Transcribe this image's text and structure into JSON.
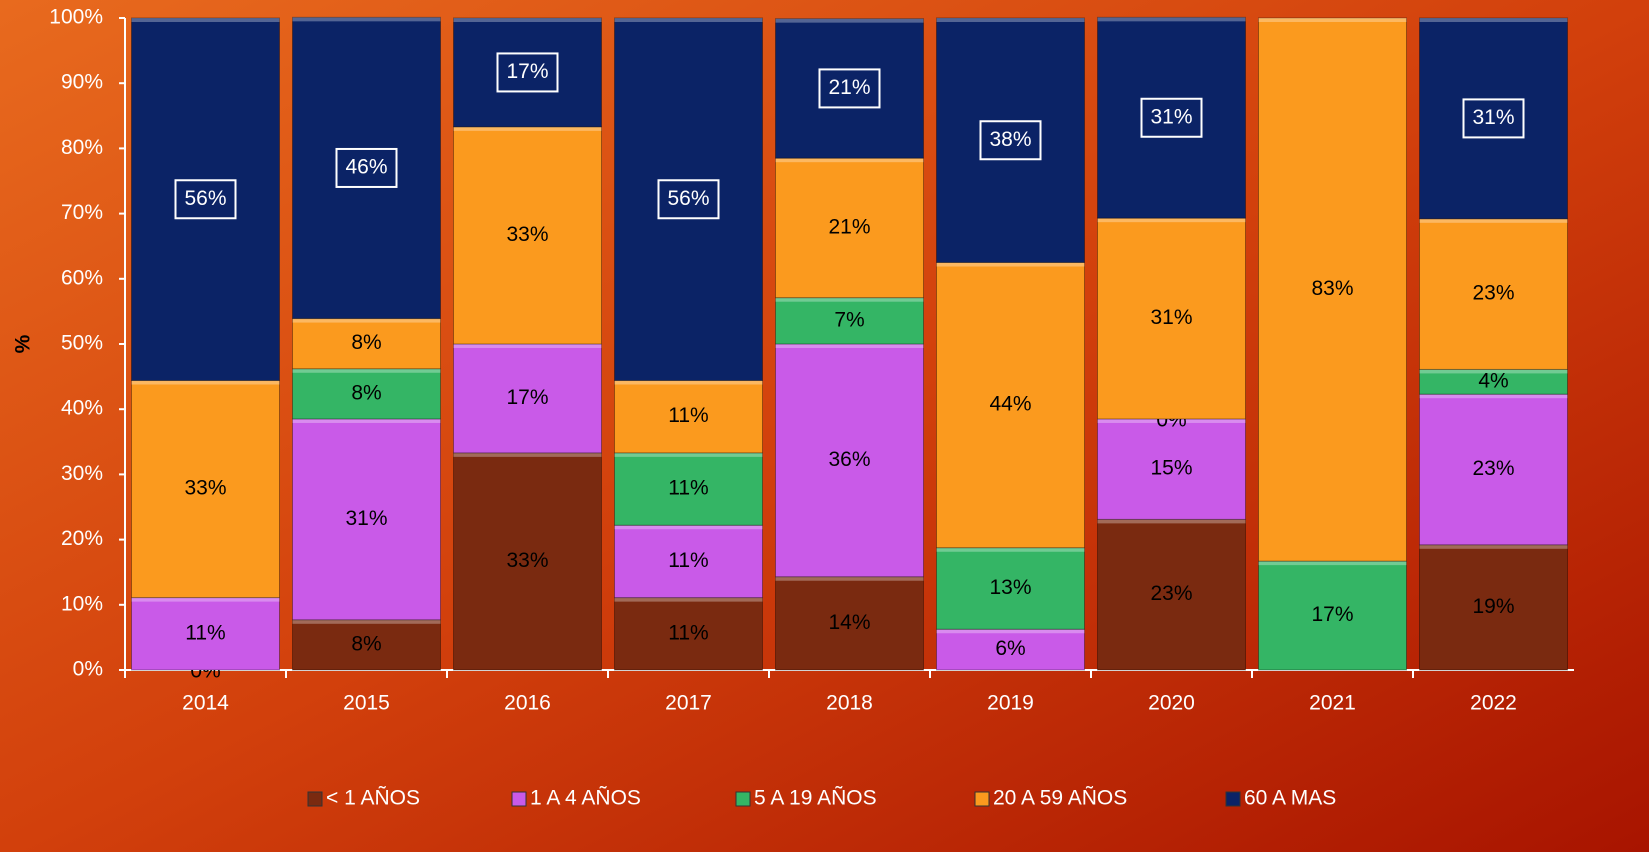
{
  "chart_data": {
    "type": "stacked_bar",
    "y_label": "%",
    "categories": [
      "2014",
      "2015",
      "2016",
      "2017",
      "2018",
      "2019",
      "2020",
      "2021",
      "2022"
    ],
    "ylim": [
      0,
      100
    ],
    "yticks": [
      {
        "value": 0,
        "label": "0%"
      },
      {
        "value": 10,
        "label": "10%"
      },
      {
        "value": 20,
        "label": "20%"
      },
      {
        "value": 30,
        "label": "30%"
      },
      {
        "value": 40,
        "label": "40%"
      },
      {
        "value": 50,
        "label": "50%"
      },
      {
        "value": 60,
        "label": "60%"
      },
      {
        "value": 70,
        "label": "70%"
      },
      {
        "value": 80,
        "label": "80%"
      },
      {
        "value": 90,
        "label": "90%"
      },
      {
        "value": 100,
        "label": "100%"
      }
    ],
    "legend": "bottom",
    "series": [
      {
        "name": "< 1 AÑOS",
        "color": "#7a2a10",
        "values": [
          0,
          7.7,
          33.3,
          11.1,
          14.3,
          0,
          23.1,
          0,
          19.2
        ],
        "value_labels": [
          "0%",
          "8%",
          "33%",
          "11%",
          "14%",
          null,
          "23%",
          null,
          "19%"
        ]
      },
      {
        "name": "1 A 4 AÑOS",
        "color": "#c95ae8",
        "values": [
          11.1,
          30.8,
          16.7,
          11.1,
          35.7,
          6.25,
          15.4,
          0,
          23.1
        ],
        "value_labels": [
          "11%",
          "31%",
          "17%",
          "11%",
          "36%",
          "6%",
          "15%",
          null,
          "23%"
        ]
      },
      {
        "name": "5 A 19 AÑOS",
        "color": "#34b565",
        "values": [
          0,
          7.7,
          0,
          11.1,
          7.1,
          12.5,
          0,
          16.7,
          3.8
        ],
        "value_labels": [
          null,
          "8%",
          null,
          "11%",
          "7%",
          "13%",
          "0%",
          "17%",
          "4%"
        ]
      },
      {
        "name": "20 A 59 AÑOS",
        "color": "#fb9a1e",
        "values": [
          33.3,
          7.7,
          33.3,
          11.1,
          21.4,
          43.75,
          30.8,
          83.3,
          23.1
        ],
        "value_labels": [
          "33%",
          "8%",
          "33%",
          "11%",
          "21%",
          "44%",
          "31%",
          "83%",
          "23%"
        ]
      },
      {
        "name": "60 A MAS",
        "color": "#0b2366",
        "values": [
          55.6,
          46.2,
          16.7,
          55.6,
          21.4,
          37.5,
          30.8,
          0,
          30.8
        ],
        "value_labels": [
          "56%",
          "46%",
          "17%",
          "56%",
          "21%",
          "38%",
          "31%",
          null,
          "31%"
        ]
      }
    ]
  }
}
